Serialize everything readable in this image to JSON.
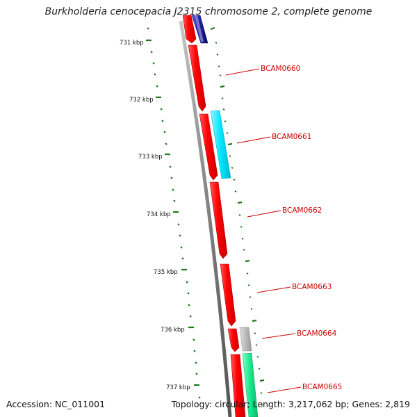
{
  "title": "Burkholderia cenocepacia J2315 chromosome 2, complete genome",
  "accession": "Accession: NC_011001",
  "summary": "Topology: circular; Length: 3,217,062 bp; Genes: 2,819",
  "colors": {
    "cds": "#ff0000",
    "backbone": "#888888",
    "tick": "#1a7a1a",
    "label": "#cc0000",
    "feature_blue": "#1a1a8c",
    "feature_cyan": "#00e5ff",
    "feature_gray": "#bbbbbb",
    "feature_green": "#19e68c"
  },
  "ticks": [
    "731 kbp",
    "732 kbp",
    "733 kbp",
    "734 kbp",
    "735 kbp",
    "736 kbp",
    "737 kbp"
  ],
  "gene_labels": [
    "BCAM0660",
    "BCAM0661",
    "BCAM0662",
    "BCAM0663",
    "BCAM0664",
    "BCAM0665"
  ]
}
